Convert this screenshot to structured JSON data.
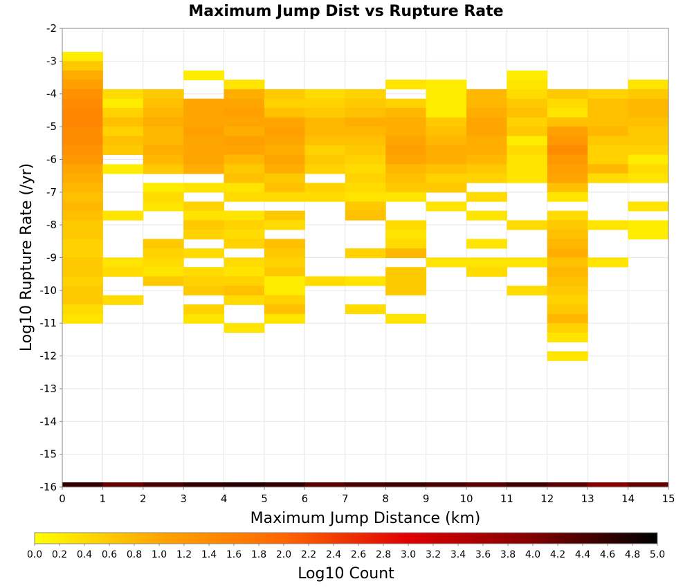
{
  "chart_data": {
    "type": "heatmap",
    "title": "Maximum Jump Dist vs Rupture Rate",
    "xlabel": "Maximum Jump Distance (km)",
    "ylabel": "Log10 Rupture Rate (/yr)",
    "xlim": [
      0,
      15
    ],
    "ylim": [
      -16,
      -2
    ],
    "x_ticks": [
      "0",
      "1",
      "2",
      "3",
      "4",
      "5",
      "6",
      "7",
      "8",
      "9",
      "10",
      "11",
      "12",
      "13",
      "14",
      "15"
    ],
    "y_ticks": [
      "-2",
      "-3",
      "-4",
      "-5",
      "-6",
      "-7",
      "-8",
      "-9",
      "-10",
      "-11",
      "-12",
      "-13",
      "-14",
      "-15",
      "-16"
    ],
    "x_bin_width": 1,
    "y_bin_height": 0.2857,
    "colorbar": {
      "label": "Log10 Count",
      "range": [
        0,
        5
      ],
      "ticks": [
        "0.0",
        "0.2",
        "0.4",
        "0.6",
        "0.8",
        "1.0",
        "1.2",
        "1.4",
        "1.6",
        "1.8",
        "2.0",
        "2.2",
        "2.4",
        "2.6",
        "2.8",
        "3.0",
        "3.2",
        "3.4",
        "3.6",
        "3.8",
        "4.0",
        "4.2",
        "4.4",
        "4.6",
        "4.8",
        "5.0"
      ],
      "stops": [
        "#ffff00",
        "#ffa500",
        "#ff6600",
        "#e00000",
        "#800000",
        "#000000"
      ]
    },
    "grid": true,
    "legend": "bottom",
    "columns": [
      {
        "x": 0,
        "cells": [
          [
            -2.86,
            0.2
          ],
          [
            -3.14,
            0.6
          ],
          [
            -3.43,
            0.9
          ],
          [
            -3.71,
            1.1
          ],
          [
            -4.0,
            1.3
          ],
          [
            -4.29,
            1.4
          ],
          [
            -4.57,
            1.5
          ],
          [
            -4.86,
            1.5
          ],
          [
            -5.14,
            1.4
          ],
          [
            -5.43,
            1.4
          ],
          [
            -5.71,
            1.3
          ],
          [
            -6.0,
            1.2
          ],
          [
            -6.29,
            1.0
          ],
          [
            -6.57,
            0.9
          ],
          [
            -6.86,
            0.8
          ],
          [
            -7.14,
            0.7
          ],
          [
            -7.43,
            0.8
          ],
          [
            -7.71,
            0.7
          ],
          [
            -8.0,
            0.6
          ],
          [
            -8.29,
            0.6
          ],
          [
            -8.57,
            0.5
          ],
          [
            -8.86,
            0.5
          ],
          [
            -9.14,
            0.6
          ],
          [
            -9.43,
            0.6
          ],
          [
            -9.71,
            0.5
          ],
          [
            -10.0,
            0.6
          ],
          [
            -10.29,
            0.6
          ],
          [
            -10.57,
            0.4
          ],
          [
            -10.86,
            0.3
          ]
        ]
      },
      {
        "x": 1,
        "cells": [
          [
            -4.0,
            0.4
          ],
          [
            -4.29,
            0.2
          ],
          [
            -4.57,
            0.5
          ],
          [
            -4.86,
            0.7
          ],
          [
            -5.14,
            0.5
          ],
          [
            -5.43,
            0.7
          ],
          [
            -5.71,
            0.6
          ],
          [
            -6.29,
            0.2
          ],
          [
            -7.71,
            0.3
          ],
          [
            -9.14,
            0.3
          ],
          [
            -9.43,
            0.4
          ],
          [
            -10.29,
            0.4
          ]
        ]
      },
      {
        "x": 2,
        "cells": [
          [
            -4.0,
            0.6
          ],
          [
            -4.29,
            0.7
          ],
          [
            -4.57,
            0.8
          ],
          [
            -4.86,
            0.9
          ],
          [
            -5.14,
            0.8
          ],
          [
            -5.43,
            0.8
          ],
          [
            -5.71,
            0.9
          ],
          [
            -6.0,
            0.8
          ],
          [
            -6.29,
            0.6
          ],
          [
            -6.86,
            0.2
          ],
          [
            -7.14,
            0.4
          ],
          [
            -7.43,
            0.3
          ],
          [
            -8.57,
            0.6
          ],
          [
            -8.86,
            0.5
          ],
          [
            -9.14,
            0.4
          ],
          [
            -9.43,
            0.3
          ],
          [
            -9.71,
            0.6
          ]
        ]
      },
      {
        "x": 3,
        "cells": [
          [
            -3.43,
            0.2
          ],
          [
            -4.29,
            1.0
          ],
          [
            -4.57,
            1.0
          ],
          [
            -4.86,
            1.0
          ],
          [
            -5.14,
            1.1
          ],
          [
            -5.43,
            1.0
          ],
          [
            -5.71,
            1.0
          ],
          [
            -6.0,
            1.0
          ],
          [
            -6.29,
            0.9
          ],
          [
            -6.86,
            0.3
          ],
          [
            -7.43,
            0.5
          ],
          [
            -7.71,
            0.3
          ],
          [
            -8.0,
            0.6
          ],
          [
            -8.29,
            0.5
          ],
          [
            -8.86,
            0.4
          ],
          [
            -9.43,
            0.4
          ],
          [
            -9.71,
            0.5
          ],
          [
            -10.0,
            0.6
          ],
          [
            -10.57,
            0.5
          ],
          [
            -10.86,
            0.3
          ]
        ]
      },
      {
        "x": 4,
        "cells": [
          [
            -3.71,
            0.3
          ],
          [
            -4.0,
            0.9
          ],
          [
            -4.29,
            1.0
          ],
          [
            -4.57,
            1.1
          ],
          [
            -4.86,
            1.0
          ],
          [
            -5.14,
            0.9
          ],
          [
            -5.43,
            1.1
          ],
          [
            -5.71,
            1.0
          ],
          [
            -6.0,
            0.8
          ],
          [
            -6.29,
            0.6
          ],
          [
            -6.57,
            0.7
          ],
          [
            -6.86,
            0.3
          ],
          [
            -7.14,
            0.4
          ],
          [
            -7.71,
            0.3
          ],
          [
            -8.0,
            0.5
          ],
          [
            -8.29,
            0.4
          ],
          [
            -8.57,
            0.5
          ],
          [
            -9.14,
            0.4
          ],
          [
            -9.43,
            0.3
          ],
          [
            -9.71,
            0.5
          ],
          [
            -10.0,
            0.7
          ],
          [
            -10.29,
            0.4
          ],
          [
            -11.14,
            0.3
          ]
        ]
      },
      {
        "x": 5,
        "cells": [
          [
            -4.0,
            0.6
          ],
          [
            -4.29,
            0.5
          ],
          [
            -4.57,
            0.7
          ],
          [
            -4.86,
            1.0
          ],
          [
            -5.14,
            1.1
          ],
          [
            -5.43,
            1.0
          ],
          [
            -5.71,
            0.9
          ],
          [
            -6.0,
            1.0
          ],
          [
            -6.29,
            0.9
          ],
          [
            -6.57,
            0.6
          ],
          [
            -6.86,
            0.7
          ],
          [
            -7.14,
            0.4
          ],
          [
            -7.71,
            0.6
          ],
          [
            -8.0,
            0.4
          ],
          [
            -8.57,
            0.7
          ],
          [
            -8.86,
            0.6
          ],
          [
            -9.14,
            0.5
          ],
          [
            -9.43,
            0.6
          ],
          [
            -9.71,
            0.2
          ],
          [
            -10.0,
            0.2
          ],
          [
            -10.29,
            0.5
          ],
          [
            -10.57,
            0.7
          ],
          [
            -10.86,
            0.3
          ]
        ]
      },
      {
        "x": 6,
        "cells": [
          [
            -4.0,
            0.4
          ],
          [
            -4.29,
            0.5
          ],
          [
            -4.57,
            0.6
          ],
          [
            -4.86,
            0.8
          ],
          [
            -5.14,
            0.8
          ],
          [
            -5.43,
            0.7
          ],
          [
            -5.71,
            0.5
          ],
          [
            -6.0,
            0.6
          ],
          [
            -6.29,
            0.5
          ],
          [
            -6.86,
            0.5
          ],
          [
            -7.14,
            0.4
          ],
          [
            -9.71,
            0.4
          ]
        ]
      },
      {
        "x": 7,
        "cells": [
          [
            -4.0,
            0.5
          ],
          [
            -4.29,
            0.6
          ],
          [
            -4.57,
            0.7
          ],
          [
            -4.86,
            0.9
          ],
          [
            -5.14,
            0.8
          ],
          [
            -5.43,
            0.7
          ],
          [
            -5.71,
            0.6
          ],
          [
            -6.0,
            0.5
          ],
          [
            -6.29,
            0.4
          ],
          [
            -6.57,
            0.5
          ],
          [
            -6.86,
            0.4
          ],
          [
            -7.14,
            0.3
          ],
          [
            -7.43,
            0.6
          ],
          [
            -7.71,
            0.7
          ],
          [
            -8.86,
            0.5
          ],
          [
            -9.71,
            0.3
          ],
          [
            -10.57,
            0.4
          ]
        ]
      },
      {
        "x": 8,
        "cells": [
          [
            -3.71,
            0.3
          ],
          [
            -4.29,
            0.5
          ],
          [
            -4.57,
            0.8
          ],
          [
            -4.86,
            0.9
          ],
          [
            -5.14,
            0.9
          ],
          [
            -5.43,
            1.0
          ],
          [
            -5.71,
            1.1
          ],
          [
            -6.0,
            1.0
          ],
          [
            -6.29,
            0.8
          ],
          [
            -6.57,
            0.7
          ],
          [
            -6.86,
            0.6
          ],
          [
            -7.14,
            0.3
          ],
          [
            -8.0,
            0.4
          ],
          [
            -8.29,
            0.3
          ],
          [
            -8.57,
            0.4
          ],
          [
            -8.86,
            0.8
          ],
          [
            -9.43,
            0.6
          ],
          [
            -9.71,
            0.6
          ],
          [
            -10.0,
            0.6
          ],
          [
            -10.86,
            0.3
          ]
        ]
      },
      {
        "x": 9,
        "cells": [
          [
            -3.71,
            0.2
          ],
          [
            -4.0,
            0.2
          ],
          [
            -4.29,
            0.2
          ],
          [
            -4.57,
            0.2
          ],
          [
            -4.86,
            0.6
          ],
          [
            -5.14,
            0.7
          ],
          [
            -5.43,
            0.8
          ],
          [
            -5.71,
            0.9
          ],
          [
            -6.0,
            0.9
          ],
          [
            -6.29,
            0.7
          ],
          [
            -6.57,
            0.5
          ],
          [
            -6.86,
            0.6
          ],
          [
            -7.43,
            0.3
          ],
          [
            -9.14,
            0.3
          ]
        ]
      },
      {
        "x": 10,
        "cells": [
          [
            -4.0,
            0.8
          ],
          [
            -4.29,
            0.8
          ],
          [
            -4.57,
            0.9
          ],
          [
            -4.86,
            1.0
          ],
          [
            -5.14,
            1.0
          ],
          [
            -5.43,
            0.9
          ],
          [
            -5.71,
            0.9
          ],
          [
            -6.0,
            0.8
          ],
          [
            -6.29,
            0.6
          ],
          [
            -6.57,
            0.5
          ],
          [
            -7.14,
            0.4
          ],
          [
            -7.71,
            0.3
          ],
          [
            -8.57,
            0.3
          ],
          [
            -9.14,
            0.3
          ],
          [
            -9.43,
            0.4
          ]
        ]
      },
      {
        "x": 11,
        "cells": [
          [
            -3.43,
            0.2
          ],
          [
            -3.71,
            0.3
          ],
          [
            -4.0,
            0.4
          ],
          [
            -4.29,
            0.6
          ],
          [
            -4.57,
            0.7
          ],
          [
            -4.86,
            0.5
          ],
          [
            -5.14,
            0.6
          ],
          [
            -5.43,
            0.2
          ],
          [
            -5.71,
            0.4
          ],
          [
            -6.0,
            0.3
          ],
          [
            -6.29,
            0.3
          ],
          [
            -6.57,
            0.3
          ],
          [
            -8.0,
            0.4
          ],
          [
            -9.14,
            0.3
          ],
          [
            -10.0,
            0.4
          ]
        ]
      },
      {
        "x": 12,
        "cells": [
          [
            -4.0,
            0.6
          ],
          [
            -4.29,
            0.4
          ],
          [
            -4.57,
            0.3
          ],
          [
            -4.86,
            0.7
          ],
          [
            -5.14,
            1.1
          ],
          [
            -5.43,
            1.2
          ],
          [
            -5.71,
            1.4
          ],
          [
            -6.0,
            1.2
          ],
          [
            -6.29,
            1.1
          ],
          [
            -6.57,
            1.0
          ],
          [
            -6.86,
            0.7
          ],
          [
            -7.14,
            0.3
          ],
          [
            -7.71,
            0.4
          ],
          [
            -8.0,
            0.6
          ],
          [
            -8.29,
            0.7
          ],
          [
            -8.57,
            0.8
          ],
          [
            -8.86,
            0.9
          ],
          [
            -9.14,
            0.7
          ],
          [
            -9.43,
            0.8
          ],
          [
            -9.71,
            0.7
          ],
          [
            -10.0,
            0.6
          ],
          [
            -10.29,
            0.5
          ],
          [
            -10.57,
            0.6
          ],
          [
            -10.86,
            0.8
          ],
          [
            -11.14,
            0.5
          ],
          [
            -11.43,
            0.3
          ],
          [
            -12.0,
            0.3
          ]
        ]
      },
      {
        "x": 13,
        "cells": [
          [
            -4.0,
            0.5
          ],
          [
            -4.29,
            0.7
          ],
          [
            -4.57,
            0.7
          ],
          [
            -4.86,
            0.7
          ],
          [
            -5.14,
            0.8
          ],
          [
            -5.43,
            0.6
          ],
          [
            -5.71,
            0.5
          ],
          [
            -6.0,
            0.5
          ],
          [
            -6.29,
            0.8
          ],
          [
            -6.57,
            0.4
          ],
          [
            -8.0,
            0.3
          ],
          [
            -9.14,
            0.3
          ]
        ]
      },
      {
        "x": 14,
        "cells": [
          [
            -3.71,
            0.3
          ],
          [
            -4.0,
            0.6
          ],
          [
            -4.29,
            0.8
          ],
          [
            -4.57,
            0.8
          ],
          [
            -4.86,
            0.7
          ],
          [
            -5.14,
            0.6
          ],
          [
            -5.43,
            0.6
          ],
          [
            -5.71,
            0.5
          ],
          [
            -6.0,
            0.2
          ],
          [
            -6.29,
            0.4
          ],
          [
            -6.57,
            0.3
          ],
          [
            -7.43,
            0.3
          ],
          [
            -8.0,
            0.2
          ],
          [
            -8.29,
            0.2
          ]
        ]
      }
    ],
    "baseline_row": {
      "y": -16,
      "values": [
        4.6,
        4.2,
        4.4,
        4.6,
        4.7,
        4.6,
        4.3,
        4.4,
        4.5,
        4.4,
        4.3,
        4.5,
        4.3,
        3.9,
        4.2
      ]
    }
  }
}
